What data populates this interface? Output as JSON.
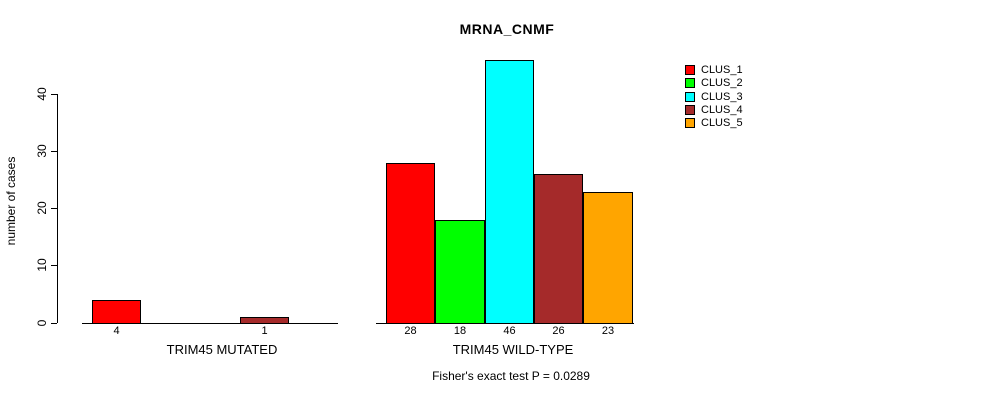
{
  "chart_data": {
    "type": "bar",
    "title": "MRNA_CNMF",
    "xlabel": "",
    "ylabel": "number of cases",
    "categories": [
      "TRIM45 MUTATED",
      "TRIM45 WILD-TYPE"
    ],
    "series": [
      {
        "name": "CLUS_1",
        "color": "#ff0000",
        "values": [
          4,
          28
        ]
      },
      {
        "name": "CLUS_2",
        "color": "#00ff00",
        "values": [
          0,
          18
        ]
      },
      {
        "name": "CLUS_3",
        "color": "#00ffff",
        "values": [
          0,
          46
        ]
      },
      {
        "name": "CLUS_4",
        "color": "#a52a2a",
        "values": [
          1,
          26
        ]
      },
      {
        "name": "CLUS_5",
        "color": "#ffa500",
        "values": [
          0,
          23
        ]
      }
    ],
    "yticks": [
      "0",
      "10",
      "20",
      "30",
      "40"
    ],
    "ylim": [
      0,
      46
    ],
    "grid": false,
    "legend_position": "right",
    "legend": [
      "CLUS_1",
      "CLUS_2",
      "CLUS_3",
      "CLUS_4",
      "CLUS_5"
    ],
    "bar_value_labels": true,
    "zero_bars_hidden": true,
    "annotation": "Fisher's exact test P = 0.0289",
    "colors": {
      "background": "#ffffff",
      "axis": "#000000",
      "text": "#000000"
    }
  }
}
